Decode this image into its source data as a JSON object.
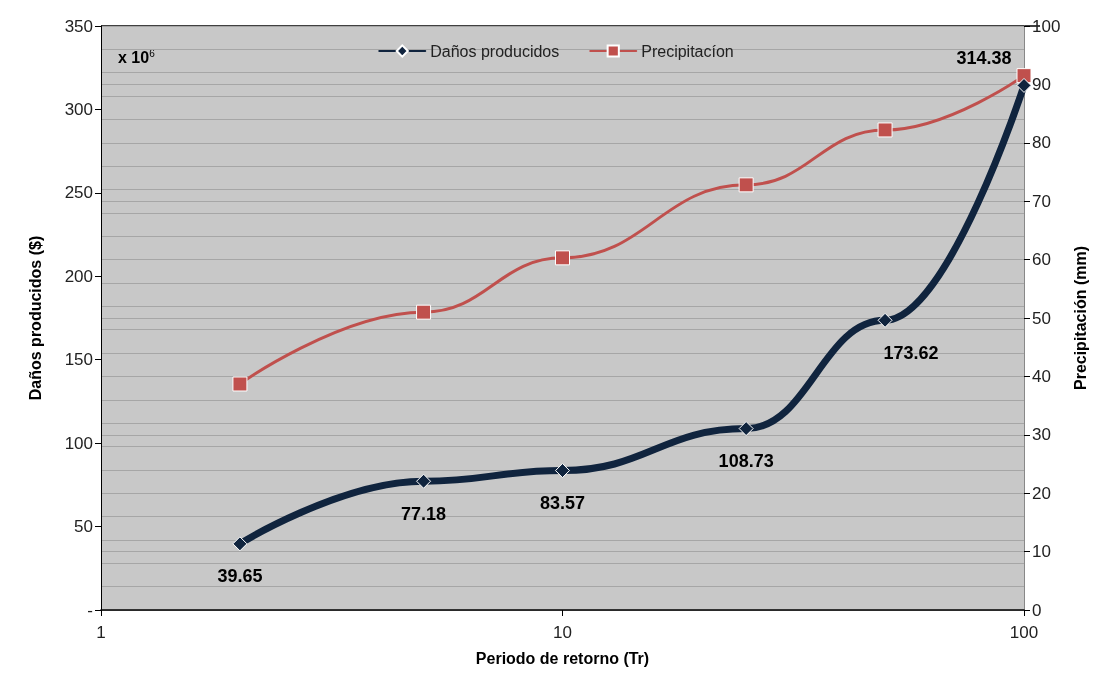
{
  "chart_data": {
    "type": "line",
    "xlabel": "Periodo de retorno (Tr)",
    "ylabel": "Daños producidos ($)",
    "y2label": "Precipitación (mm)",
    "annotations": [
      "x 10$^{6}$"
    ],
    "log": "x",
    "xlim": [
      1,
      100
    ],
    "xticks": [
      1,
      10,
      100
    ],
    "ylim": [
      0,
      350
    ],
    "yticks": [
      {
        "value": 0,
        "label": "-"
      },
      50,
      100,
      150,
      200,
      250,
      300,
      350
    ],
    "y2lim": [
      0,
      100
    ],
    "y2ticks": [
      0,
      10,
      20,
      30,
      40,
      50,
      60,
      70,
      80,
      90,
      100
    ],
    "grid": "y",
    "legend": "top",
    "series": [
      {
        "name": "Daños producidos",
        "color": "#10243e",
        "marker": "diamond",
        "x": [
          2,
          5,
          10,
          25,
          50,
          100
        ],
        "values": [
          39.65,
          77.18,
          83.57,
          108.73,
          173.62,
          314.38
        ],
        "data_labels": true
      },
      {
        "name": "Precipitacíon",
        "color": "#c0504d",
        "marker": "square",
        "axis": "y2",
        "x": [
          2,
          5,
          10,
          25,
          50,
          100
        ],
        "values": [
          38.7,
          51,
          60.3,
          72.8,
          82.2,
          91.5
        ]
      }
    ]
  }
}
